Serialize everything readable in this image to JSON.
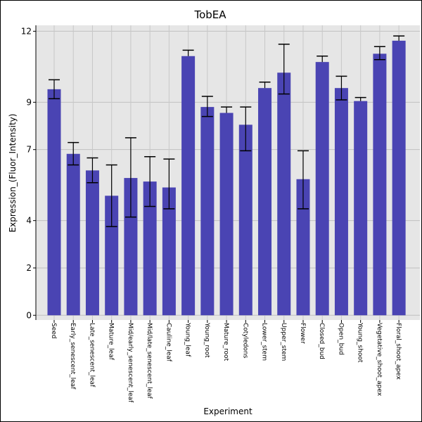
{
  "chart_data": {
    "type": "bar",
    "title": "TobEA",
    "xlabel": "Experiment",
    "ylabel": "Expression_(Fluor_Intensity)",
    "ylim": [
      -0.2,
      12.25
    ],
    "yticks": [
      0,
      2,
      4,
      7,
      9,
      12
    ],
    "grid": true,
    "bar_color": "#4a44b3",
    "categories": [
      "Seed",
      "Early_senescent_leaf",
      "Late_senescent_leaf",
      "Mature_leaf",
      "Mid/early_senescent_leaf",
      "Mid/late_senescent_leaf",
      "Cauline_leaf",
      "Young_leaf",
      "Young_root",
      "Mature_root",
      "Cotyledons",
      "Lower_stem",
      "Upper_stem",
      "Flower",
      "Closed_bud",
      "Open_bud",
      "Young_shoot",
      "Vegetative_shoot_apex",
      "Floral_shoot_apex"
    ],
    "values": [
      9.55,
      6.82,
      6.12,
      5.05,
      5.8,
      5.65,
      5.4,
      10.95,
      8.8,
      8.55,
      8.05,
      9.6,
      10.25,
      5.75,
      10.7,
      9.6,
      9.05,
      11.05,
      11.6
    ],
    "error_low": [
      9.15,
      6.35,
      5.6,
      3.75,
      4.15,
      4.6,
      4.5,
      null,
      8.4,
      null,
      6.95,
      null,
      9.35,
      4.5,
      null,
      9.1,
      null,
      10.8,
      null
    ],
    "error_high": [
      9.95,
      7.3,
      6.65,
      6.35,
      7.5,
      6.7,
      6.6,
      11.2,
      9.25,
      8.8,
      8.8,
      9.85,
      11.45,
      6.95,
      10.95,
      10.1,
      9.2,
      11.35,
      11.8
    ]
  }
}
